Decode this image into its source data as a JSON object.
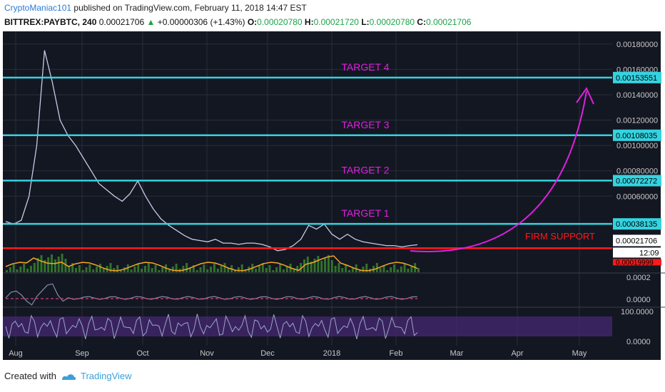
{
  "header": {
    "author": "CryptoManiac101",
    "published_text": "published on TradingView.com, February 11, 2018 14:47 EST"
  },
  "symbol_bar": {
    "symbol": "BITTREX:PAYBTC, 240",
    "price": "0.00021706",
    "change_arrow": "▲",
    "change": "+0.00000306 (+1.43%)",
    "open_label": "O:",
    "open": "0.00020780",
    "high_label": "H:",
    "high": "0.00021720",
    "low_label": "L:",
    "low": "0.00020780",
    "close_label": "C:",
    "close": "0.00021706"
  },
  "footer": {
    "created_with": "Created with",
    "brand": "TradingView"
  },
  "colors": {
    "background": "#131722",
    "grid": "#2a2e39",
    "price_line": "#c9c9e6",
    "target_line": "#35d3e0",
    "support_line": "#ff1a1a",
    "annotation": "#e020e0",
    "volume_ma": "#f5a623",
    "volume_bar": "#3b8a2e",
    "osc_line": "#d23c7a",
    "stoch_band": "#4a2a78"
  },
  "chart_data": {
    "type": "line",
    "title": "",
    "series": [
      {
        "values": [
          0.0004,
          0.00038,
          0.00041,
          0.0006,
          0.001,
          0.00175,
          0.0015,
          0.0012,
          0.00108,
          0.001,
          0.0009,
          0.0008,
          0.0007,
          0.00065,
          0.0006,
          0.00056,
          0.00062,
          0.00072,
          0.0006,
          0.0005,
          0.00042,
          0.00037,
          0.00033,
          0.00029,
          0.00026,
          0.00025,
          0.00024,
          0.00026,
          0.00023,
          0.00023,
          0.00022,
          0.00023,
          0.00023,
          0.00022,
          0.0002,
          0.00017,
          0.00018,
          0.00021,
          0.00026,
          0.00037,
          0.00034,
          0.00038,
          0.0003,
          0.00026,
          0.0003,
          0.00026,
          0.00024,
          0.00023,
          0.00022,
          0.00021,
          0.00021,
          0.0002,
          0.00021,
          0.00021706
        ]
      }
    ],
    "x_tick_labels": [
      "Aug",
      "Sep",
      "Oct",
      "Nov",
      "Dec",
      "2018",
      "Feb",
      "Mar",
      "Apr",
      "May"
    ],
    "y_tick_labels": [
      "0.00180000",
      "0.00160000",
      "0.00140000",
      "0.00120000",
      "0.00100000",
      "0.00080000",
      "0.00060000"
    ],
    "ylim": [
      0,
      0.0019
    ],
    "horizontal_levels": [
      {
        "label": "TARGET 4",
        "value": 0.00153551,
        "tag": "0.00153551"
      },
      {
        "label": "TARGET 3",
        "value": 0.00108035,
        "tag": "0.00108035"
      },
      {
        "label": "TARGET 2",
        "value": 0.00072272,
        "tag": "0.00072272"
      },
      {
        "label": "TARGET 1",
        "value": 0.00038135,
        "tag": "0.00038135"
      },
      {
        "label": "FIRM SUPPORT",
        "value": 0.00019,
        "tag": ""
      }
    ],
    "last_price_tag": "0.00021706",
    "countdown_tag": "12:09",
    "low_tag_partial": "0.00019999",
    "oscillator_axis_labels": [
      "0.0002",
      "0.0000"
    ],
    "stochastic_axis_labels": [
      "100.0000",
      "0.0000"
    ]
  }
}
